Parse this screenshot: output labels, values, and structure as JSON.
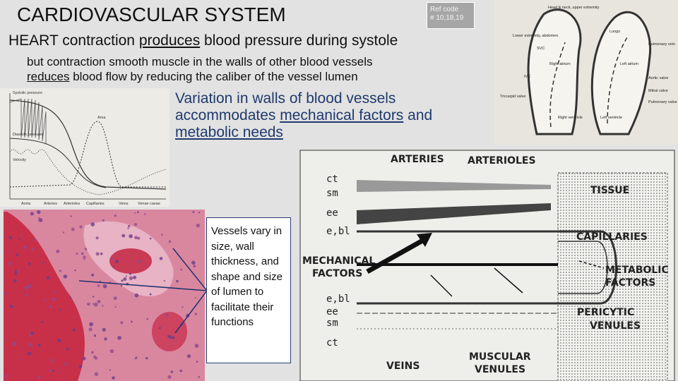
{
  "title": "CARDIOVASCULAR SYSTEM",
  "ref_code": [
    "Ref code",
    "# 10,18,19"
  ],
  "heading": [
    "HEART contraction ",
    "produces",
    " blood pressure during systole"
  ],
  "subheading": [
    "but contraction smooth muscle in the walls of other blood vessels",
    "reduces",
    " blood flow by reducing the caliber of the vessel lumen"
  ],
  "variation": [
    "Variation in walls of blood vessels accommodates ",
    "mechanical factors",
    " and ",
    "metabolic needs"
  ],
  "callout": "Vessels vary in size, wall thickness, and shape and size of lumen to facilitate their functions",
  "pressure_chart": {
    "labels": [
      "Systolic pressure",
      "Diastolic pressure",
      "Velocity",
      "Area"
    ],
    "categories": [
      "Aorta",
      "Arteries",
      "Arterioles",
      "Capillaries",
      "Veins",
      "Venae cavae"
    ]
  },
  "heart_diagram": {
    "labels": [
      "Head & neck, upper extremity",
      "Lungs",
      "Lower extremity, abdomen",
      "Right atrium",
      "Left atrium",
      "Pulmonary vein",
      "Aortic valve",
      "Mitral valve",
      "Pulmonary valve",
      "Tricuspid valve",
      "Right ventricle",
      "Left ventricle",
      "IVC",
      "SVC"
    ]
  },
  "vessel_diagram": {
    "arteries": "ARTERIES",
    "arterioles": "ARTERIOLES",
    "tissue": "TISSUE",
    "capillaries": "CAPILLARIES",
    "mechanical_factors": [
      "MECHANICAL",
      "FACTORS"
    ],
    "metabolic_factors": [
      "METABOLIC",
      "FACTORS"
    ],
    "pericytic_venules": [
      "PERICYTIC",
      "VENULES"
    ],
    "veins": "VEINS",
    "muscular_venules": [
      "MUSCULAR",
      "VENULES"
    ],
    "layers_top": [
      "ct",
      "sm",
      "ee",
      "e,bl"
    ],
    "layers_bottom": [
      "e,bl",
      "ee",
      "sm",
      "ct"
    ]
  }
}
